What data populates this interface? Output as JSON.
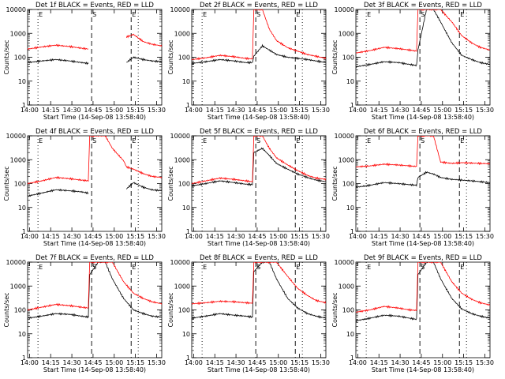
{
  "figure": {
    "xlabel": "Start Time (14-Sep-08 13:58:40)",
    "ylabel": "Counts/sec",
    "x_tick_labels": [
      "14:00",
      "14:15",
      "14:30",
      "14:45",
      "15:00",
      "15:15",
      "15:30"
    ],
    "y_tick_labels": [
      "1",
      "10",
      "100",
      "1000",
      "10000"
    ],
    "marker_labels": [
      "E",
      "S",
      "E"
    ],
    "colors": {
      "events": "#000000",
      "lld": "#ff0000"
    }
  },
  "chart_data": [
    {
      "type": "line",
      "title": "Det 1f BLACK = Events, RED = LLD",
      "x_range_minutes": [
        0,
        95
      ],
      "ylim": [
        1,
        10000
      ],
      "y_scale": "log",
      "markers_x": [
        "14:06",
        "14:44",
        "15:12"
      ],
      "series": [
        {
          "name": "Events",
          "x": [
            0,
            10,
            20,
            30,
            38,
            43,
            44,
            50,
            55,
            60,
            68,
            70,
            75,
            82,
            88,
            95
          ],
          "values": [
            60,
            70,
            80,
            70,
            60,
            55,
            null,
            null,
            null,
            null,
            null,
            60,
            100,
            80,
            70,
            65
          ]
        },
        {
          "name": "LLD",
          "x": [
            0,
            10,
            20,
            30,
            38,
            43,
            44,
            50,
            55,
            60,
            68,
            70,
            75,
            82,
            88,
            95
          ],
          "values": [
            220,
            270,
            320,
            280,
            240,
            220,
            null,
            null,
            null,
            null,
            null,
            700,
            900,
            450,
            350,
            300
          ]
        }
      ]
    },
    {
      "type": "line",
      "title": "Det 2f BLACK = Events, RED = LLD",
      "x_range_minutes": [
        0,
        95
      ],
      "ylim": [
        1,
        10000
      ],
      "y_scale": "log",
      "markers_x": [
        "14:06",
        "14:44",
        "15:12"
      ],
      "series": [
        {
          "name": "Events",
          "x": [
            0,
            10,
            20,
            30,
            38,
            43,
            44,
            50,
            55,
            60,
            68,
            75,
            82,
            88,
            95
          ],
          "values": [
            55,
            65,
            80,
            70,
            60,
            60,
            110,
            300,
            200,
            130,
            100,
            90,
            80,
            70,
            60
          ]
        },
        {
          "name": "LLD",
          "x": [
            0,
            10,
            20,
            30,
            38,
            43,
            44,
            50,
            55,
            60,
            68,
            75,
            82,
            88,
            95
          ],
          "values": [
            80,
            95,
            120,
            105,
            90,
            85,
            10000,
            10000,
            1500,
            500,
            250,
            180,
            130,
            110,
            90
          ]
        }
      ]
    },
    {
      "type": "line",
      "title": "Det 3f BLACK = Events, RED = LLD",
      "x_range_minutes": [
        0,
        95
      ],
      "ylim": [
        1,
        10000
      ],
      "y_scale": "log",
      "markers_x": [
        "14:06",
        "14:44",
        "15:12"
      ],
      "series": [
        {
          "name": "Events",
          "x": [
            0,
            10,
            20,
            30,
            38,
            43,
            44,
            50,
            55,
            60,
            68,
            75,
            82,
            88,
            95
          ],
          "values": [
            40,
            50,
            65,
            60,
            50,
            45,
            200,
            10000,
            10000,
            3000,
            400,
            120,
            80,
            60,
            50
          ]
        },
        {
          "name": "LLD",
          "x": [
            0,
            10,
            20,
            30,
            38,
            43,
            44,
            50,
            55,
            60,
            68,
            75,
            82,
            88,
            95
          ],
          "values": [
            150,
            190,
            260,
            230,
            200,
            180,
            10000,
            10000,
            10000,
            10000,
            3000,
            800,
            400,
            260,
            200
          ]
        }
      ]
    },
    {
      "type": "line",
      "title": "Det 4f BLACK = Events, RED = LLD",
      "x_range_minutes": [
        0,
        95
      ],
      "ylim": [
        1,
        10000
      ],
      "y_scale": "log",
      "markers_x": [
        "14:06",
        "14:44",
        "15:12"
      ],
      "series": [
        {
          "name": "Events",
          "x": [
            0,
            10,
            20,
            30,
            38,
            43,
            44,
            50,
            55,
            60,
            68,
            70,
            75,
            82,
            88,
            95
          ],
          "values": [
            30,
            40,
            55,
            50,
            45,
            40,
            null,
            null,
            null,
            null,
            null,
            60,
            110,
            70,
            55,
            50
          ]
        },
        {
          "name": "LLD",
          "x": [
            0,
            10,
            20,
            30,
            38,
            43,
            44,
            50,
            55,
            60,
            68,
            70,
            75,
            82,
            88,
            95
          ],
          "values": [
            100,
            130,
            180,
            160,
            140,
            130,
            10000,
            10000,
            10000,
            3000,
            900,
            500,
            400,
            260,
            200,
            180
          ]
        }
      ]
    },
    {
      "type": "line",
      "title": "Det 5f BLACK = Events, RED = LLD",
      "x_range_minutes": [
        0,
        95
      ],
      "ylim": [
        1,
        10000
      ],
      "y_scale": "log",
      "markers_x": [
        "14:06",
        "14:44",
        "15:12"
      ],
      "series": [
        {
          "name": "Events",
          "x": [
            0,
            10,
            20,
            30,
            38,
            43,
            44,
            50,
            55,
            60,
            68,
            75,
            82,
            88,
            95
          ],
          "values": [
            80,
            100,
            130,
            110,
            95,
            90,
            2000,
            3000,
            1500,
            700,
            400,
            250,
            180,
            140,
            120
          ]
        },
        {
          "name": "LLD",
          "x": [
            0,
            10,
            20,
            30,
            38,
            43,
            44,
            50,
            55,
            60,
            68,
            75,
            82,
            88,
            95
          ],
          "values": [
            100,
            130,
            170,
            150,
            130,
            120,
            10000,
            10000,
            3000,
            1200,
            600,
            350,
            220,
            170,
            150
          ]
        }
      ]
    },
    {
      "type": "line",
      "title": "Det 6f BLACK = Events, RED = LLD",
      "x_range_minutes": [
        0,
        95
      ],
      "ylim": [
        1,
        10000
      ],
      "y_scale": "log",
      "markers_x": [
        "14:06",
        "14:44",
        "15:12"
      ],
      "series": [
        {
          "name": "Events",
          "x": [
            0,
            10,
            20,
            30,
            38,
            43,
            44,
            50,
            55,
            60,
            68,
            75,
            82,
            88,
            95
          ],
          "values": [
            70,
            85,
            110,
            100,
            90,
            85,
            180,
            300,
            250,
            180,
            150,
            140,
            130,
            120,
            110
          ]
        },
        {
          "name": "LLD",
          "x": [
            0,
            10,
            20,
            30,
            38,
            43,
            44,
            50,
            55,
            60,
            68,
            75,
            82,
            88,
            95
          ],
          "values": [
            500,
            550,
            650,
            600,
            550,
            520,
            10000,
            10000,
            10000,
            800,
            700,
            750,
            720,
            700,
            680
          ]
        }
      ]
    },
    {
      "type": "line",
      "title": "Det 7f BLACK = Events, RED = LLD",
      "x_range_minutes": [
        0,
        95
      ],
      "ylim": [
        1,
        10000
      ],
      "y_scale": "log",
      "markers_x": [
        "14:06",
        "14:44",
        "15:12"
      ],
      "series": [
        {
          "name": "Events",
          "x": [
            0,
            10,
            20,
            30,
            38,
            43,
            44,
            50,
            55,
            60,
            68,
            75,
            82,
            88,
            95
          ],
          "values": [
            45,
            55,
            70,
            65,
            55,
            50,
            3000,
            10000,
            10000,
            2000,
            300,
            100,
            70,
            55,
            50
          ]
        },
        {
          "name": "LLD",
          "x": [
            0,
            10,
            20,
            30,
            38,
            43,
            44,
            50,
            55,
            60,
            68,
            75,
            82,
            88,
            95
          ],
          "values": [
            100,
            130,
            170,
            150,
            130,
            120,
            10000,
            10000,
            10000,
            10000,
            1500,
            500,
            300,
            220,
            180
          ]
        }
      ]
    },
    {
      "type": "line",
      "title": "Det 8f BLACK = Events, RED = LLD",
      "x_range_minutes": [
        0,
        95
      ],
      "ylim": [
        1,
        10000
      ],
      "y_scale": "log",
      "markers_x": [
        "14:06",
        "14:44",
        "15:12"
      ],
      "series": [
        {
          "name": "Events",
          "x": [
            0,
            10,
            20,
            30,
            38,
            43,
            44,
            50,
            55,
            60,
            68,
            75,
            82,
            88,
            95
          ],
          "values": [
            45,
            55,
            70,
            60,
            55,
            50,
            4000,
            10000,
            10000,
            2000,
            300,
            120,
            70,
            55,
            45
          ]
        },
        {
          "name": "LLD",
          "x": [
            0,
            10,
            20,
            30,
            38,
            43,
            44,
            50,
            55,
            60,
            68,
            75,
            82,
            88,
            95
          ],
          "values": [
            180,
            200,
            230,
            220,
            200,
            190,
            10000,
            10000,
            10000,
            10000,
            2500,
            800,
            400,
            250,
            200
          ]
        }
      ]
    },
    {
      "type": "line",
      "title": "Det 9f BLACK = Events, RED = LLD",
      "x_range_minutes": [
        0,
        95
      ],
      "ylim": [
        1,
        10000
      ],
      "y_scale": "log",
      "markers_x": [
        "14:06",
        "14:44",
        "15:12"
      ],
      "series": [
        {
          "name": "Events",
          "x": [
            0,
            10,
            20,
            30,
            38,
            43,
            44,
            50,
            55,
            60,
            68,
            75,
            82,
            88,
            95
          ],
          "values": [
            35,
            45,
            60,
            55,
            45,
            40,
            3000,
            10000,
            10000,
            2000,
            300,
            110,
            70,
            55,
            45
          ]
        },
        {
          "name": "LLD",
          "x": [
            0,
            10,
            20,
            30,
            38,
            43,
            44,
            50,
            55,
            60,
            68,
            75,
            82,
            88,
            95
          ],
          "values": [
            80,
            100,
            140,
            120,
            100,
            95,
            10000,
            10000,
            10000,
            10000,
            1500,
            500,
            280,
            200,
            160
          ]
        }
      ]
    }
  ]
}
